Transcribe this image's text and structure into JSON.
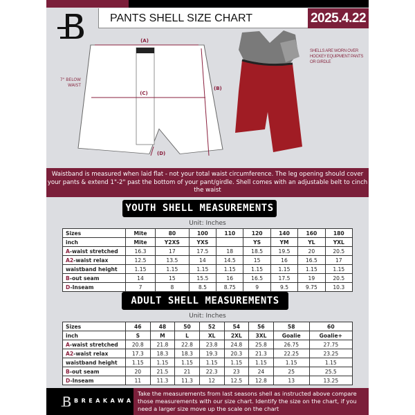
{
  "header": {
    "title": "PANTS SHELL SIZE CHART",
    "date": "2025.4.22"
  },
  "diagram": {
    "label_a": "(A)",
    "label_b": "(B)",
    "label_c": "(C)",
    "label_d": "(D)",
    "below_waist": "7\" BELOW WAIST"
  },
  "photo_note": "SHELLS ARE WORN OVER HOCKEY EQUIPMENT PANTS OR GIRDLE",
  "info_band": "Waistband is measured when laid flat - not your total waist circumference. The leg opening should cover your pants & extend 1\"-2\" past the bottom of your pant/girdle. Shell comes with an adjustable belt to cinch the waist",
  "youth": {
    "title": "YOUTH SHELL MEASUREMENTS",
    "unit": "Unit: Inches",
    "rows": [
      {
        "prefix": "",
        "label": "Sizes",
        "values": [
          "Mite",
          "80",
          "100",
          "110",
          "120",
          "140",
          "160",
          "180"
        ]
      },
      {
        "prefix": "",
        "label": "inch",
        "values": [
          "Mite",
          "Y2XS",
          "YXS",
          "",
          "YS",
          "YM",
          "YL",
          "YXL"
        ]
      },
      {
        "prefix": "A",
        "label": "-waist stretched",
        "values": [
          "16.3",
          "17",
          "17.5",
          "18",
          "18.5",
          "19.5",
          "20",
          "20.5"
        ]
      },
      {
        "prefix": "A2",
        "label": "-waist relax",
        "values": [
          "12.5",
          "13.5",
          "14",
          "14.5",
          "15",
          "16",
          "16.5",
          "17"
        ]
      },
      {
        "prefix": "",
        "label": "waistband height",
        "values": [
          "1.15",
          "1.15",
          "1.15",
          "1.15",
          "1.15",
          "1.15",
          "1.15",
          "1.15"
        ]
      },
      {
        "prefix": "B",
        "label": "-out seam",
        "values": [
          "14",
          "15",
          "15.5",
          "16",
          "16.5",
          "17.5",
          "19",
          "20.5"
        ]
      },
      {
        "prefix": "D",
        "label": "-Inseam",
        "values": [
          "7",
          "8",
          "8.5",
          "8.75",
          "9",
          "9.5",
          "9.75",
          "10.3"
        ]
      }
    ]
  },
  "adult": {
    "title": "ADULT SHELL MEASUREMENTS",
    "unit": "Unit: Inches",
    "rows": [
      {
        "prefix": "",
        "label": "Sizes",
        "values": [
          "46",
          "48",
          "50",
          "52",
          "54",
          "56",
          "58",
          "60"
        ]
      },
      {
        "prefix": "",
        "label": "inch",
        "values": [
          "S",
          "M",
          "L",
          "XL",
          "2XL",
          "3XL",
          "Goalie",
          "Goalie+"
        ]
      },
      {
        "prefix": "A",
        "label": "-waist stretched",
        "values": [
          "20.8",
          "21.8",
          "22.8",
          "23.8",
          "24.8",
          "25.8",
          "26.75",
          "27.75"
        ]
      },
      {
        "prefix": "A2",
        "label": "-waist relax",
        "values": [
          "17.3",
          "18.3",
          "18.3",
          "19.3",
          "20.3",
          "21.3",
          "22.25",
          "23.25"
        ]
      },
      {
        "prefix": "",
        "label": "waistband height",
        "values": [
          "1.15",
          "1.15",
          "1.15",
          "1.15",
          "1.15",
          "1.15",
          "1.15",
          "1.15"
        ]
      },
      {
        "prefix": "B",
        "label": "-out seam",
        "values": [
          "20",
          "21.5",
          "21",
          "22.3",
          "23",
          "24",
          "25",
          "25.5"
        ]
      },
      {
        "prefix": "D",
        "label": "-Inseam",
        "values": [
          "11",
          "11.3",
          "11.3",
          "12",
          "12.5",
          "12.8",
          "13",
          "13.25"
        ]
      }
    ]
  },
  "footer": {
    "brand": "BREAKAWAY",
    "text": "Take the measurements from last seasons shell as instructed above compare those measurements  with our size chart. Identify the size on the chart, if you need a larger size move up the scale on the chart"
  },
  "colors": {
    "accent": "#7b1f3a",
    "background": "#dcdde1"
  }
}
